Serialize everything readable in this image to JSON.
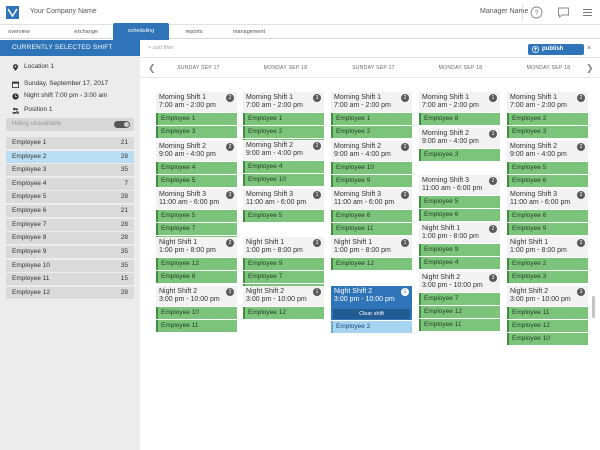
{
  "header": {
    "company": "Your Company Name",
    "manager": "Manager Name",
    "icons": [
      "logo-icon",
      "help-icon",
      "chat-icon",
      "menu-icon"
    ]
  },
  "nav": {
    "tabs": [
      {
        "label": "overview",
        "active": false
      },
      {
        "label": "exchange",
        "active": false
      },
      {
        "label": "scheduling",
        "active": true
      },
      {
        "label": "reports",
        "active": false
      },
      {
        "label": "management",
        "active": false
      }
    ]
  },
  "sidebar": {
    "header": "CURRENTLY SELECTED SHIFT",
    "location": "Location 1",
    "date": "Sunday, September 17, 2017",
    "shift": "Night shift  7:00 pm - 3:00 am",
    "position": "Position 1",
    "hiding_label": "Hiding unavailable",
    "employees": [
      {
        "name": "Employee 1",
        "count": "21"
      },
      {
        "name": "Employee 2",
        "count": "28",
        "selected": true
      },
      {
        "name": "Employee 3",
        "count": "35"
      },
      {
        "name": "Employee 4",
        "count": "7"
      },
      {
        "name": "Employee 5",
        "count": "28"
      },
      {
        "name": "Employee 6",
        "count": "21"
      },
      {
        "name": "Employee 7",
        "count": "28"
      },
      {
        "name": "Employee 8",
        "count": "28"
      },
      {
        "name": "Employee 9",
        "count": "35"
      },
      {
        "name": "Employee 10",
        "count": "35"
      },
      {
        "name": "Employee 11",
        "count": "15"
      },
      {
        "name": "Employee 12",
        "count": "28"
      }
    ]
  },
  "toolbar": {
    "add_filter": "+ add filter",
    "publish_label": "publish changes",
    "close": "×"
  },
  "days": [
    "SUNDAY SEP 17",
    "MONDAY SEP 18",
    "SUNDAY SEP 17",
    "MONDAY SEP 18",
    "MONDAY SEP 18"
  ],
  "columns": [
    [
      {
        "name": "Morning Shift 1",
        "time": "7:00 am - 2:00 pm",
        "badge": "2",
        "employees": [
          "Employee 1",
          "Employee 3"
        ]
      },
      {
        "name": "Morning Shift 2",
        "time": "9:00 am - 4:00 pm",
        "badge": "2",
        "employees": [
          "Employee 4",
          "Employee 5"
        ]
      },
      {
        "name": "Morning Shift 3",
        "time": "11:00 am - 6:00 pm",
        "badge": "3",
        "employees": [
          "Employee 5",
          "Employee 7",
          "Employee 9"
        ]
      },
      {
        "name": "Night Shift 1",
        "time": "1:00 pm - 8:00 pm",
        "badge": "2",
        "employees": [
          "Employee 12",
          "Employee 8"
        ]
      },
      {
        "name": "Night Shift 2",
        "time": "3:00 pm - 10:00 pm",
        "badge": "2",
        "employees": [
          "Employee 10",
          "Employee 11"
        ]
      }
    ],
    [
      {
        "name": "Morning Shift 1",
        "time": "7:00 am - 2:00 pm",
        "badge": "3",
        "employees": [
          "Employee 1",
          "Employee 2",
          "Employee 3"
        ]
      },
      {
        "name": "Morning Shift 2",
        "time": "9:00 am - 4:00 pm",
        "badge": "2",
        "employees": [
          "Employee 4",
          "Employee 10"
        ]
      },
      {
        "name": "Morning Shift 3",
        "time": "11:00 am - 6:00 pm",
        "badge": "1",
        "employees": [
          "Employee 5"
        ]
      },
      {
        "name": "Night Shift 1",
        "time": "1:00 pm - 8:00 pm",
        "badge": "3",
        "employees": [
          "Employee 9",
          "Employee 7",
          "Employee 8"
        ]
      },
      {
        "name": "Night Shift 2",
        "time": "3:00 pm - 10:00 pm",
        "badge": "1",
        "employees": [
          "Employee 12"
        ]
      }
    ],
    [
      {
        "name": "Morning Shift 1",
        "time": "7:00 am - 2:00 pm",
        "badge": "2",
        "employees": [
          "Employee 1",
          "Employee 2"
        ]
      },
      {
        "name": "Morning Shift 2",
        "time": "9:00 am - 4:00 pm",
        "badge": "2",
        "employees": [
          "Employee 10",
          "Employee 9"
        ]
      },
      {
        "name": "Morning Shift 3",
        "time": "11:00 am - 6:00 pm",
        "badge": "2",
        "employees": [
          "Employee 6",
          "Employee 11"
        ]
      },
      {
        "name": "Night Shift 1",
        "time": "1:00 pm - 8:00 pm",
        "badge": "1",
        "employees": [
          "Employee 12"
        ]
      },
      {
        "name": "Night Shift 2",
        "time": "3:00 pm - 10:00 pm",
        "badge": "1",
        "employees": [
          "Employee 2"
        ],
        "selected": true,
        "clear_label": "Clear shift"
      }
    ],
    [
      {
        "name": "Morning Shift 1",
        "time": "7:00 am - 2:00 pm",
        "badge": "1",
        "employees": [
          "Employee 8"
        ]
      },
      {
        "name": "Morning Shift 2",
        "time": "9:00 am - 4:00 pm",
        "badge": "1",
        "employees": [
          "Employee 3"
        ]
      },
      {
        "name": "Morning Shift 3",
        "time": "11:00 am - 6:00 pm",
        "badge": "2",
        "employees": [
          "Employee 5",
          "Employee 6"
        ]
      },
      {
        "name": "Night Shift 1",
        "time": "1:00 pm - 8:00 pm",
        "badge": "2",
        "employees": [
          "Employee 9",
          "Employee 4"
        ]
      },
      {
        "name": "Night Shift 2",
        "time": "3:00 pm - 10:00 pm",
        "badge": "3",
        "employees": [
          "Employee 7",
          "Employee 12",
          "Employee 11"
        ]
      }
    ],
    [
      {
        "name": "Morning Shift 1",
        "time": "7:00 am - 2:00 pm",
        "badge": "2",
        "employees": [
          "Employee 2",
          "Employee 3"
        ]
      },
      {
        "name": "Morning Shift 2",
        "time": "9:00 am - 4:00 pm",
        "badge": "2",
        "employees": [
          "Employee 5",
          "Employee 6"
        ]
      },
      {
        "name": "Morning Shift 3",
        "time": "11:00 am - 6:00 pm",
        "badge": "2",
        "employees": [
          "Employee 6",
          "Employee 9"
        ]
      },
      {
        "name": "Night Shift 1",
        "time": "1:00 pm - 8:00 pm",
        "badge": "2",
        "employees": [
          "Employee 2",
          "Employee 3"
        ]
      },
      {
        "name": "Night Shift 2",
        "time": "3:00 pm - 10:00 pm",
        "badge": "3",
        "employees": [
          "Employee 11",
          "Employee 12",
          "Employee 10"
        ]
      }
    ]
  ],
  "colors": {
    "accent": "#2f73b8",
    "assigned": "#7cc47c",
    "highlight": "#a7d4f0"
  }
}
